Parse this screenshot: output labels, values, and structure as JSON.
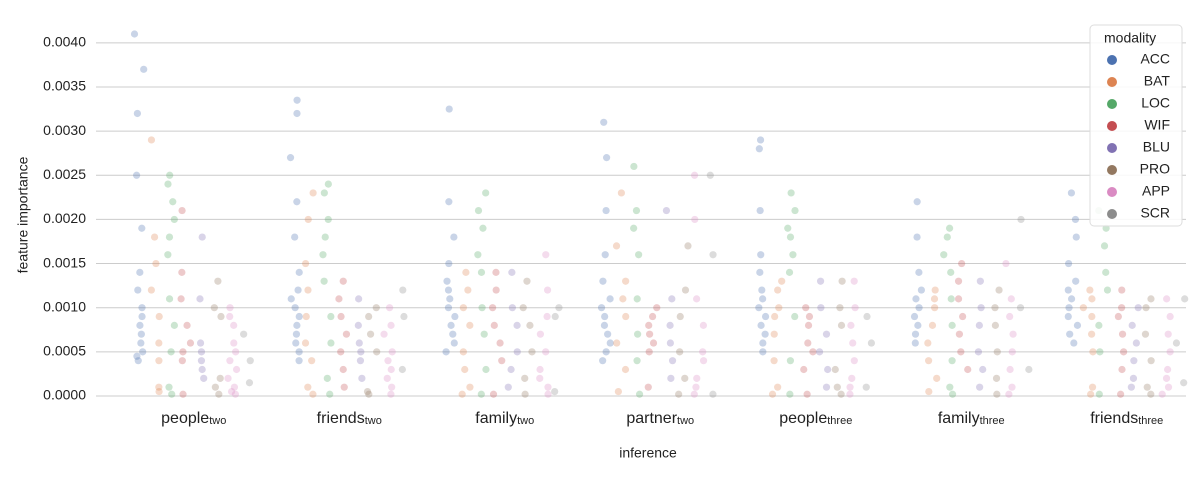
{
  "chart_data": {
    "type": "strip",
    "xlabel": "inference",
    "ylabel": "feature importance",
    "categories": [
      "people",
      "friends",
      "family",
      "partner",
      "people",
      "family",
      "friends"
    ],
    "category_subscripts": [
      "two",
      "two",
      "two",
      "two",
      "three",
      "three",
      "three"
    ],
    "ylim": [
      0,
      0.0041
    ],
    "yticks": [
      {
        "value": 0,
        "label": "0.0000"
      },
      {
        "value": 0.0005,
        "label": "0.0005"
      },
      {
        "value": 0.001,
        "label": "0.0010"
      },
      {
        "value": 0.0015,
        "label": "0.0015"
      },
      {
        "value": 0.002,
        "label": "0.0020"
      },
      {
        "value": 0.0025,
        "label": "0.0025"
      },
      {
        "value": 0.003,
        "label": "0.0030"
      },
      {
        "value": 0.0035,
        "label": "0.0035"
      },
      {
        "value": 0.004,
        "label": "0.0040"
      }
    ],
    "grid": true,
    "legend_title": "modality",
    "legend_position": "upper right",
    "opacity": 0.3,
    "series": [
      {
        "name": "ACC",
        "color": "#4c72b0",
        "values": [
          [
            0.0041,
            0.0037,
            0.0032,
            0.0025,
            0.0019,
            0.0014,
            0.0012,
            0.001,
            0.0009,
            0.0008,
            0.0007,
            0.0006,
            0.0005,
            0.00045,
            0.0004
          ],
          [
            0.00335,
            0.0032,
            0.0027,
            0.0022,
            0.0018,
            0.0014,
            0.0012,
            0.0011,
            0.001,
            0.0009,
            0.0008,
            0.0007,
            0.0006,
            0.0005,
            0.0004
          ],
          [
            0.00325,
            0.0022,
            0.0018,
            0.0015,
            0.0013,
            0.0012,
            0.0011,
            0.001,
            0.0009,
            0.0008,
            0.0007,
            0.0006,
            0.0005
          ],
          [
            0.0031,
            0.0027,
            0.0021,
            0.0016,
            0.0013,
            0.0011,
            0.001,
            0.0009,
            0.0008,
            0.0007,
            0.0006,
            0.0005,
            0.0004
          ],
          [
            0.0029,
            0.0028,
            0.0021,
            0.0016,
            0.0014,
            0.0012,
            0.0011,
            0.001,
            0.0009,
            0.0008,
            0.0007,
            0.0006,
            0.0005
          ],
          [
            0.0022,
            0.0018,
            0.0014,
            0.0012,
            0.0011,
            0.001,
            0.0009,
            0.0008,
            0.0007,
            0.0006
          ],
          [
            0.0023,
            0.002,
            0.0018,
            0.0015,
            0.0013,
            0.0012,
            0.0011,
            0.001,
            0.0009,
            0.0008,
            0.0007,
            0.0006
          ]
        ]
      },
      {
        "name": "BAT",
        "color": "#dd8452",
        "values": [
          [
            0.0029,
            0.0018,
            0.0015,
            0.0012,
            0.0009,
            0.0006,
            0.0004,
            0.0001,
            5e-05
          ],
          [
            0.0023,
            0.002,
            0.0015,
            0.0012,
            0.0009,
            0.0006,
            0.0004,
            0.0001,
            2e-05
          ],
          [
            0.0014,
            0.0012,
            0.001,
            0.0008,
            0.0005,
            0.0003,
            0.0001,
            2e-05
          ],
          [
            0.0023,
            0.0017,
            0.0013,
            0.0011,
            0.0009,
            0.0006,
            0.0003,
            5e-05
          ],
          [
            0.0013,
            0.0012,
            0.001,
            0.0009,
            0.0007,
            0.0004,
            0.0001,
            2e-05
          ],
          [
            0.0012,
            0.0011,
            0.001,
            0.0008,
            0.0006,
            0.0004,
            0.0002,
            5e-05
          ],
          [
            0.0012,
            0.0011,
            0.001,
            0.0009,
            0.0007,
            0.0005,
            0.0001,
            2e-05
          ]
        ]
      },
      {
        "name": "LOC",
        "color": "#55a868",
        "values": [
          [
            0.0025,
            0.0024,
            0.0022,
            0.002,
            0.0018,
            0.0016,
            0.0011,
            0.0008,
            0.0005,
            0.0001,
            2e-05
          ],
          [
            0.0024,
            0.0023,
            0.002,
            0.0018,
            0.0016,
            0.0013,
            0.0009,
            0.0006,
            0.0002,
            2e-05
          ],
          [
            0.0023,
            0.0021,
            0.0019,
            0.0016,
            0.0014,
            0.001,
            0.0007,
            0.0003,
            2e-05
          ],
          [
            0.0026,
            0.0021,
            0.0019,
            0.0016,
            0.0011,
            0.0007,
            0.0004,
            2e-05
          ],
          [
            0.0023,
            0.0021,
            0.0019,
            0.0018,
            0.0016,
            0.0014,
            0.0009,
            0.0004,
            2e-05
          ],
          [
            0.0019,
            0.0018,
            0.0016,
            0.0014,
            0.0011,
            0.0008,
            0.0004,
            0.0001,
            2e-05
          ],
          [
            0.0021,
            0.0019,
            0.0017,
            0.0014,
            0.0012,
            0.0008,
            0.0005,
            2e-05
          ]
        ]
      },
      {
        "name": "WIF",
        "color": "#c44e52",
        "values": [
          [
            0.0021,
            0.0014,
            0.0011,
            0.0008,
            0.0006,
            0.0005,
            0.0004,
            2e-05
          ],
          [
            0.0013,
            0.0011,
            0.0009,
            0.0007,
            0.0005,
            0.0003,
            0.0001
          ],
          [
            0.0014,
            0.0012,
            0.001,
            0.0008,
            0.0006,
            0.0004,
            2e-05
          ],
          [
            0.001,
            0.0009,
            0.0008,
            0.0007,
            0.0006,
            0.0005,
            0.0001
          ],
          [
            0.001,
            0.0009,
            0.0008,
            0.0006,
            0.0005,
            0.0003,
            2e-05
          ],
          [
            0.0015,
            0.0013,
            0.0011,
            0.0009,
            0.0007,
            0.0005,
            0.0003
          ],
          [
            0.0012,
            0.001,
            0.0009,
            0.0007,
            0.0005,
            0.0003,
            2e-05
          ]
        ]
      },
      {
        "name": "BLU",
        "color": "#8172b3",
        "values": [
          [
            0.0018,
            0.0011,
            0.0006,
            0.0005,
            0.0004,
            0.0003,
            0.0002
          ],
          [
            0.0011,
            0.0008,
            0.0006,
            0.0005,
            0.0004,
            0.0002
          ],
          [
            0.0014,
            0.001,
            0.0008,
            0.0005,
            0.0003,
            0.0001
          ],
          [
            0.0021,
            0.0011,
            0.0008,
            0.0006,
            0.0004,
            0.0002
          ],
          [
            0.0013,
            0.001,
            0.0007,
            0.0005,
            0.0003,
            0.0001
          ],
          [
            0.0013,
            0.001,
            0.0008,
            0.0005,
            0.0003,
            0.0001
          ],
          [
            0.001,
            0.0008,
            0.0006,
            0.0004,
            0.0002,
            0.0001
          ]
        ]
      },
      {
        "name": "PRO",
        "color": "#937860",
        "values": [
          [
            0.0013,
            0.001,
            0.0009,
            0.0002,
            0.0001,
            2e-05
          ],
          [
            0.001,
            0.0009,
            0.0007,
            0.0005,
            5e-05,
            2e-05
          ],
          [
            0.0013,
            0.001,
            0.0008,
            0.0005,
            0.0002,
            2e-05
          ],
          [
            0.0017,
            0.0012,
            0.0009,
            0.0005,
            0.0002,
            2e-05
          ],
          [
            0.0013,
            0.001,
            0.0008,
            0.0003,
            0.0001,
            2e-05
          ],
          [
            0.0012,
            0.001,
            0.0008,
            0.0005,
            0.0002,
            2e-05
          ],
          [
            0.0011,
            0.001,
            0.0007,
            0.0004,
            0.0001,
            2e-05
          ]
        ]
      },
      {
        "name": "APP",
        "color": "#da8bc3",
        "values": [
          [
            0.001,
            0.0009,
            0.0008,
            0.0006,
            0.0005,
            0.0004,
            0.0003,
            0.0002,
            0.0001,
            5e-05,
            2e-05
          ],
          [
            0.001,
            0.0008,
            0.0007,
            0.0005,
            0.0004,
            0.0003,
            0.0002,
            0.0001,
            2e-05
          ],
          [
            0.0016,
            0.0012,
            0.0009,
            0.0007,
            0.0005,
            0.0003,
            0.0002,
            0.0001,
            2e-05
          ],
          [
            0.0025,
            0.002,
            0.0011,
            0.0008,
            0.0005,
            0.0004,
            0.0002,
            0.0001,
            2e-05
          ],
          [
            0.0013,
            0.001,
            0.0008,
            0.0006,
            0.0004,
            0.0002,
            0.0001,
            2e-05
          ],
          [
            0.0015,
            0.0011,
            0.0009,
            0.0007,
            0.0005,
            0.0003,
            0.0001,
            2e-05
          ],
          [
            0.0011,
            0.0009,
            0.0007,
            0.0005,
            0.0003,
            0.0002,
            0.0001,
            2e-05
          ]
        ]
      },
      {
        "name": "SCR",
        "color": "#8c8c8c",
        "values": [
          [
            0.0007,
            0.0004,
            0.00015
          ],
          [
            0.0012,
            0.0009,
            0.0003
          ],
          [
            0.001,
            0.0009,
            5e-05
          ],
          [
            0.0025,
            0.0016,
            2e-05
          ],
          [
            0.0009,
            0.0006,
            0.0001
          ],
          [
            0.002,
            0.001,
            0.0003
          ],
          [
            0.0011,
            0.0006,
            0.00015
          ]
        ]
      }
    ]
  }
}
